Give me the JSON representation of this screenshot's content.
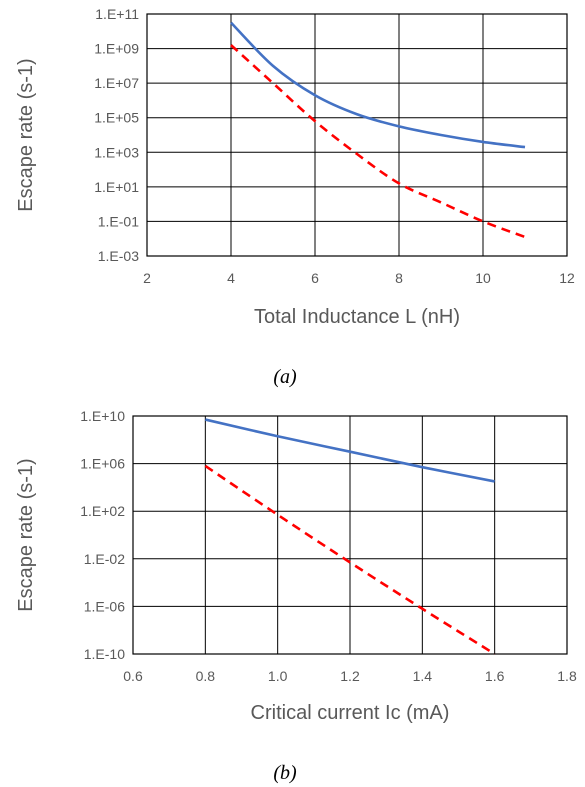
{
  "chart_data": [
    {
      "type": "line",
      "caption": "(a)",
      "xlabel": "Total Inductance L (nH)",
      "ylabel": "Escape rate (s-1)",
      "y_scale": "log",
      "xlim": [
        2,
        12
      ],
      "ylim_exponent": [
        -3,
        11
      ],
      "grid": true,
      "x_ticks": [
        2,
        4,
        6,
        8,
        10,
        12
      ],
      "x_tick_labels": [
        "2",
        "4",
        "6",
        "8",
        "10",
        "12"
      ],
      "y_tick_exponents": [
        11,
        9,
        7,
        5,
        3,
        1,
        -1,
        -3
      ],
      "y_tick_labels": [
        "1.E+11",
        "1.E+09",
        "1.E+07",
        "1.E+05",
        "1.E+03",
        "1.E+01",
        "1.E-01",
        "1.E-03"
      ],
      "series": [
        {
          "color": "#4472C4",
          "dash": "solid",
          "x": [
            4,
            5,
            6,
            7,
            8,
            9,
            10,
            11
          ],
          "log10_y": [
            10.5,
            8.0,
            6.3,
            5.2,
            4.5,
            4.0,
            3.6,
            3.3
          ]
        },
        {
          "color": "#FF0000",
          "dash": "dashed",
          "x": [
            4,
            5,
            6,
            7,
            8,
            9,
            10,
            11
          ],
          "log10_y": [
            9.2,
            7.0,
            4.8,
            2.9,
            1.2,
            0.1,
            -1.0,
            -1.9
          ]
        }
      ]
    },
    {
      "type": "line",
      "caption": "(b)",
      "xlabel": "Critical current Ic (mA)",
      "ylabel": "Escape rate (s-1)",
      "y_scale": "log",
      "xlim": [
        0.6,
        1.8
      ],
      "ylim_exponent": [
        -10,
        10
      ],
      "grid": true,
      "x_ticks": [
        0.6,
        0.8,
        1.0,
        1.2,
        1.4,
        1.6,
        1.8
      ],
      "x_tick_labels": [
        "0.6",
        "0.8",
        "1.0",
        "1.2",
        "1.4",
        "1.6",
        "1.8"
      ],
      "y_tick_exponents": [
        10,
        6,
        2,
        -2,
        -6,
        -10
      ],
      "y_tick_labels": [
        "1.E+10",
        "1.E+06",
        "1.E+02",
        "1.E-02",
        "1.E-06",
        "1.E-10"
      ],
      "series": [
        {
          "color": "#4472C4",
          "dash": "solid",
          "x": [
            0.8,
            1.0,
            1.2,
            1.4,
            1.6
          ],
          "log10_y": [
            9.7,
            8.3,
            7.0,
            5.7,
            4.5
          ]
        },
        {
          "color": "#FF0000",
          "dash": "dashed",
          "x": [
            0.8,
            1.0,
            1.2,
            1.4,
            1.6
          ],
          "log10_y": [
            5.8,
            1.7,
            -2.3,
            -6.2,
            -10.0
          ]
        }
      ]
    }
  ]
}
